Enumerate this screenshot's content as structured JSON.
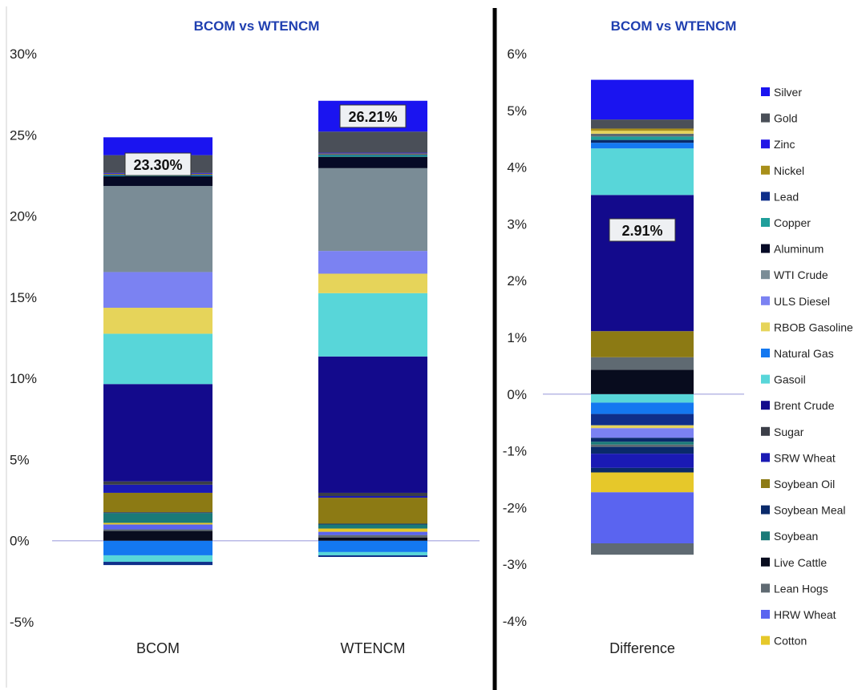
{
  "colors": {
    "Silver": "#1a14f0",
    "Gold": "#4a4f58",
    "Zinc": "#2216e6",
    "Nickel": "#a88f1a",
    "Lead": "#0f2f8a",
    "Copper": "#1f9e9a",
    "Aluminum": "#060a26",
    "WTI Crude": "#7a8c96",
    "ULS Diesel": "#7b82f2",
    "RBOB Gasoline": "#e6d45a",
    "Natural Gas": "#1478f0",
    "Gasoil": "#58d6d9",
    "Brent Crude": "#130a8c",
    "Sugar": "#3b3e48",
    "SRW Wheat": "#1a1ab4",
    "Soybean Oil": "#8c7a14",
    "Soybean Meal": "#0a2a6a",
    "Soybean": "#1a7a78",
    "Live Cattle": "#080c1e",
    "Lean Hogs": "#5f6a72",
    "HRW Wheat": "#5a64f0",
    "Cotton": "#e6c82a",
    "zero_line": "#b9b9e6",
    "divider": "#000000",
    "title": "#1f3fb0"
  },
  "legend": [
    "Silver",
    "Gold",
    "Zinc",
    "Nickel",
    "Lead",
    "Copper",
    "Aluminum",
    "WTI Crude",
    "ULS Diesel",
    "RBOB Gasoline",
    "Natural Gas",
    "Gasoil",
    "Brent Crude",
    "Sugar",
    "SRW Wheat",
    "Soybean Oil",
    "Soybean Meal",
    "Soybean",
    "Live Cattle",
    "Lean Hogs",
    "HRW Wheat",
    "Cotton"
  ],
  "chart_data": [
    {
      "type": "bar",
      "stacked": true,
      "title": "BCOM vs WTENCM",
      "categories": [
        "BCOM",
        "WTENCM"
      ],
      "ylim": [
        -5,
        30
      ],
      "yticks": [
        "30%",
        "25%",
        "20%",
        "15%",
        "10%",
        "5%",
        "0%",
        "-5%"
      ],
      "ytick_values": [
        30,
        25,
        20,
        15,
        10,
        5,
        0,
        -5
      ],
      "grid": false,
      "data_labels": [
        "23.30%",
        "26.21%"
      ],
      "series": [
        {
          "name": "Natural Gas",
          "values": [
            -0.9,
            -0.7
          ]
        },
        {
          "name": "Gasoil",
          "values": [
            -0.4,
            -0.2
          ]
        },
        {
          "name": "Lead",
          "values": [
            -0.2,
            -0.1
          ]
        },
        {
          "name": "Live Cattle",
          "values": [
            0.6,
            0.2
          ]
        },
        {
          "name": "Lean Hogs",
          "values": [
            0.1,
            0.15
          ]
        },
        {
          "name": "HRW Wheat",
          "values": [
            0.3,
            0.2
          ]
        },
        {
          "name": "Cotton",
          "values": [
            0.1,
            0.2
          ]
        },
        {
          "name": "Soybean",
          "values": [
            0.6,
            0.25
          ]
        },
        {
          "name": "Soybean Meal",
          "values": [
            0.05,
            0.05
          ]
        },
        {
          "name": "Soybean Oil",
          "values": [
            1.2,
            1.6
          ]
        },
        {
          "name": "SRW Wheat",
          "values": [
            0.5,
            0.1
          ]
        },
        {
          "name": "Sugar",
          "values": [
            0.2,
            0.2
          ]
        },
        {
          "name": "Brent Crude",
          "values": [
            6.0,
            8.4
          ]
        },
        {
          "name": "Gasoil ",
          "values": [
            3.1,
            3.9
          ]
        },
        {
          "name": "RBOB Gasoline",
          "values": [
            1.6,
            1.2
          ]
        },
        {
          "name": "ULS Diesel",
          "values": [
            2.2,
            1.4
          ]
        },
        {
          "name": "WTI Crude",
          "values": [
            5.3,
            5.1
          ]
        },
        {
          "name": "Aluminum",
          "values": [
            0.6,
            0.7
          ]
        },
        {
          "name": "Copper",
          "values": [
            0.05,
            0.1
          ]
        },
        {
          "name": "Lead",
          "values": [
            0.05,
            0.05
          ]
        },
        {
          "name": "Nickel",
          "values": [
            0.05,
            0.05
          ]
        },
        {
          "name": "Zinc",
          "values": [
            0.05,
            0.05
          ]
        },
        {
          "name": "Gold",
          "values": [
            1.1,
            1.3
          ]
        },
        {
          "name": "Silver",
          "values": [
            1.1,
            1.9
          ]
        }
      ]
    },
    {
      "type": "bar",
      "stacked": true,
      "title": "BCOM vs WTENCM",
      "categories": [
        "Difference"
      ],
      "ylim": [
        -4,
        6
      ],
      "yticks": [
        "6%",
        "5%",
        "4%",
        "3%",
        "2%",
        "1%",
        "0%",
        "-1%",
        "-2%",
        "-3%",
        "-4%"
      ],
      "ytick_values": [
        6,
        5,
        4,
        3,
        2,
        1,
        0,
        -1,
        -2,
        -3,
        -4
      ],
      "grid": false,
      "data_labels": [
        "2.91%"
      ],
      "series": [
        {
          "name": "Gasoil",
          "values": [
            -0.15
          ]
        },
        {
          "name": "Natural Gas",
          "values": [
            -0.2
          ]
        },
        {
          "name": "Lead",
          "values": [
            -0.2
          ]
        },
        {
          "name": "RBOB Gasoline",
          "values": [
            -0.05
          ]
        },
        {
          "name": "ULS Diesel",
          "values": [
            -0.17
          ]
        },
        {
          "name": "Soybean Meal",
          "values": [
            -0.07
          ]
        },
        {
          "name": "Soybean",
          "values": [
            -0.05
          ]
        },
        {
          "name": "Lean Hogs",
          "values": [
            -0.04
          ]
        },
        {
          "name": "Soybean Meal ",
          "values": [
            -0.12
          ]
        },
        {
          "name": "SRW Wheat",
          "values": [
            -0.25
          ]
        },
        {
          "name": "Soybean Meal  ",
          "values": [
            -0.08
          ]
        },
        {
          "name": "Cotton",
          "values": [
            -0.35
          ]
        },
        {
          "name": "HRW Wheat",
          "values": [
            -0.9
          ]
        },
        {
          "name": "Lean Hogs ",
          "values": [
            -0.2
          ]
        },
        {
          "name": "Live Cattle",
          "values": [
            0.43
          ]
        },
        {
          "name": "Lean Hogs  ",
          "values": [
            0.22
          ]
        },
        {
          "name": "Soybean Oil",
          "values": [
            0.46
          ]
        },
        {
          "name": "Brent Crude",
          "values": [
            2.4
          ]
        },
        {
          "name": "Gasoil ",
          "values": [
            0.82
          ]
        },
        {
          "name": "Natural Gas ",
          "values": [
            0.1
          ]
        },
        {
          "name": "Soybean Meal   ",
          "values": [
            0.05
          ]
        },
        {
          "name": "Copper",
          "values": [
            0.06
          ]
        },
        {
          "name": "Lean Hogs   ",
          "values": [
            0.05
          ]
        },
        {
          "name": "RBOB Gasoline ",
          "values": [
            0.05
          ]
        },
        {
          "name": "Nickel",
          "values": [
            0.04
          ]
        },
        {
          "name": "Gold",
          "values": [
            0.16
          ]
        },
        {
          "name": "Silver",
          "values": [
            0.7
          ]
        }
      ]
    }
  ]
}
